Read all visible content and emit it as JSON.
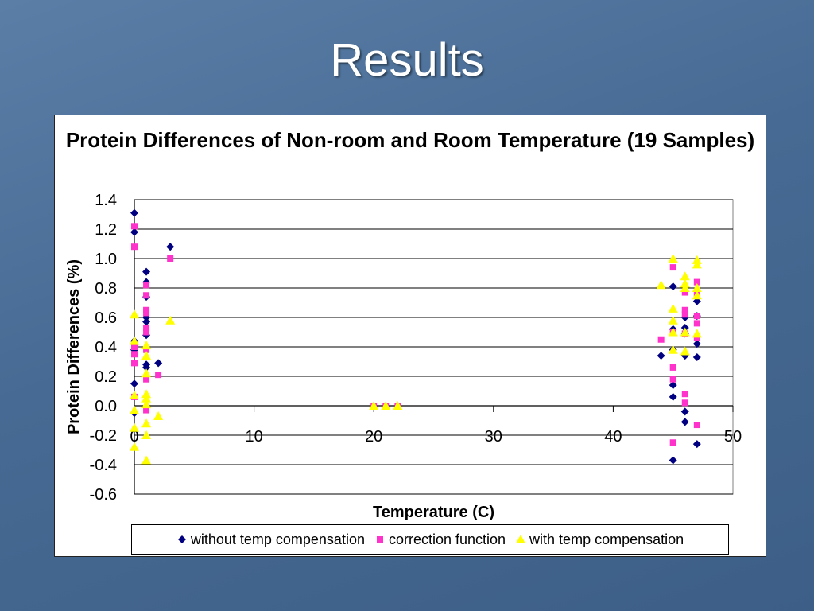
{
  "slide": {
    "title": "Results"
  },
  "chart_data": {
    "type": "scatter",
    "title": "Protein Differences of Non-room and Room Temperature (19 Samples)",
    "xlabel": "Temperature (C)",
    "ylabel": "Protein Differences (%)",
    "xlim": [
      0,
      50
    ],
    "ylim": [
      -0.6,
      1.4
    ],
    "x_ticks": [
      "0",
      "10",
      "20",
      "30",
      "40",
      "50"
    ],
    "y_ticks": [
      "1.4",
      "1.2",
      "1.0",
      "0.8",
      "0.6",
      "0.4",
      "0.2",
      "0.0",
      "-0.2",
      "-0.4",
      "-0.6"
    ],
    "grid": true,
    "legend_position": "bottom",
    "series": [
      {
        "name": "without temp compensation",
        "color": "#000080",
        "marker": "diamond",
        "points": [
          [
            0,
            1.31
          ],
          [
            0,
            1.18
          ],
          [
            0,
            0.44
          ],
          [
            0,
            0.38
          ],
          [
            0,
            0.15
          ],
          [
            0,
            -0.05
          ],
          [
            1,
            0.91
          ],
          [
            1,
            0.84
          ],
          [
            1,
            0.74
          ],
          [
            1,
            0.6
          ],
          [
            1,
            0.57
          ],
          [
            1,
            0.48
          ],
          [
            1,
            0.28
          ],
          [
            1,
            0.26
          ],
          [
            2,
            0.29
          ],
          [
            3,
            1.08
          ],
          [
            20,
            0.0
          ],
          [
            21,
            0.0
          ],
          [
            22,
            0.0
          ],
          [
            44,
            0.34
          ],
          [
            45,
            0.81
          ],
          [
            45,
            0.52
          ],
          [
            45,
            0.38
          ],
          [
            45,
            0.14
          ],
          [
            45,
            0.06
          ],
          [
            45,
            -0.37
          ],
          [
            46,
            0.6
          ],
          [
            46,
            0.53
          ],
          [
            46,
            0.49
          ],
          [
            46,
            0.34
          ],
          [
            46,
            -0.04
          ],
          [
            46,
            -0.11
          ],
          [
            47,
            0.71
          ],
          [
            47,
            0.61
          ],
          [
            47,
            0.42
          ],
          [
            47,
            0.33
          ],
          [
            47,
            -0.26
          ]
        ]
      },
      {
        "name": "correction function",
        "color": "#ff33cc",
        "marker": "square",
        "points": [
          [
            0,
            1.22
          ],
          [
            0,
            1.08
          ],
          [
            0,
            0.4
          ],
          [
            0,
            0.35
          ],
          [
            0,
            0.29
          ],
          [
            0,
            0.06
          ],
          [
            1,
            0.82
          ],
          [
            1,
            0.75
          ],
          [
            1,
            0.65
          ],
          [
            1,
            0.63
          ],
          [
            1,
            0.53
          ],
          [
            1,
            0.5
          ],
          [
            1,
            0.38
          ],
          [
            1,
            0.18
          ],
          [
            1,
            -0.03
          ],
          [
            2,
            0.21
          ],
          [
            3,
            1.0
          ],
          [
            20,
            0.0
          ],
          [
            21,
            0.0
          ],
          [
            22,
            0.0
          ],
          [
            44,
            0.45
          ],
          [
            45,
            0.94
          ],
          [
            45,
            0.5
          ],
          [
            45,
            0.26
          ],
          [
            45,
            0.18
          ],
          [
            45,
            -0.25
          ],
          [
            46,
            0.77
          ],
          [
            46,
            0.65
          ],
          [
            46,
            0.62
          ],
          [
            46,
            0.49
          ],
          [
            46,
            0.08
          ],
          [
            46,
            0.02
          ],
          [
            47,
            0.84
          ],
          [
            47,
            0.76
          ],
          [
            47,
            0.61
          ],
          [
            47,
            0.56
          ],
          [
            47,
            0.46
          ],
          [
            47,
            -0.13
          ]
        ]
      },
      {
        "name": "with temp compensation",
        "color": "#ffff00",
        "marker": "triangle",
        "points": [
          [
            0,
            0.62
          ],
          [
            0,
            0.44
          ],
          [
            0,
            0.07
          ],
          [
            0,
            -0.03
          ],
          [
            0,
            -0.15
          ],
          [
            0,
            -0.28
          ],
          [
            1,
            0.41
          ],
          [
            1,
            0.34
          ],
          [
            1,
            0.22
          ],
          [
            1,
            0.08
          ],
          [
            1,
            0.05
          ],
          [
            1,
            0.01
          ],
          [
            1,
            -0.12
          ],
          [
            1,
            -0.2
          ],
          [
            1,
            -0.37
          ],
          [
            2,
            -0.07
          ],
          [
            3,
            0.58
          ],
          [
            20,
            0.0
          ],
          [
            21,
            0.0
          ],
          [
            22,
            0.0
          ],
          [
            44,
            0.82
          ],
          [
            45,
            1.0
          ],
          [
            45,
            0.66
          ],
          [
            45,
            0.58
          ],
          [
            45,
            0.5
          ],
          [
            45,
            0.38
          ],
          [
            46,
            0.88
          ],
          [
            46,
            0.83
          ],
          [
            46,
            0.8
          ],
          [
            46,
            0.5
          ],
          [
            46,
            0.37
          ],
          [
            47,
            0.99
          ],
          [
            47,
            0.96
          ],
          [
            47,
            0.8
          ],
          [
            47,
            0.75
          ],
          [
            47,
            0.49
          ]
        ]
      }
    ]
  }
}
